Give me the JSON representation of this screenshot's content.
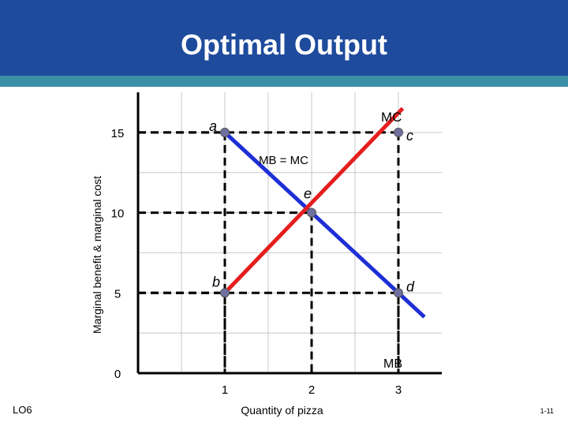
{
  "slide": {
    "title": "Optimal Output",
    "footer_left": "LO6",
    "footer_right": "1-11"
  },
  "colors": {
    "header": "#1e4b9c",
    "band": "#3b8fa6",
    "mb_line": "#1f2fd6",
    "mc_line": "#e41e1e",
    "point": "#7070a0"
  },
  "chart_data": {
    "type": "line",
    "title": "",
    "xlabel": "Quantity of pizza",
    "ylabel": "Marginal benefit & marginal cost",
    "xlim": [
      0,
      3.5
    ],
    "ylim": [
      0,
      17.5
    ],
    "x_ticks": [
      1,
      2,
      3
    ],
    "y_ticks": [
      0,
      5,
      10,
      15
    ],
    "grid": true,
    "series": [
      {
        "name": "MB",
        "x": [
          1,
          3.3
        ],
        "y": [
          15,
          3.5
        ]
      },
      {
        "name": "MC",
        "x": [
          1,
          3.05
        ],
        "y": [
          5,
          16.5
        ]
      }
    ],
    "points": [
      {
        "label": "a",
        "x": 1,
        "y": 15
      },
      {
        "label": "c",
        "x": 3,
        "y": 15
      },
      {
        "label": "e",
        "x": 2,
        "y": 10
      },
      {
        "label": "b",
        "x": 1,
        "y": 5
      },
      {
        "label": "d",
        "x": 3,
        "y": 5
      }
    ],
    "annotations": [
      "MB = MC"
    ]
  }
}
